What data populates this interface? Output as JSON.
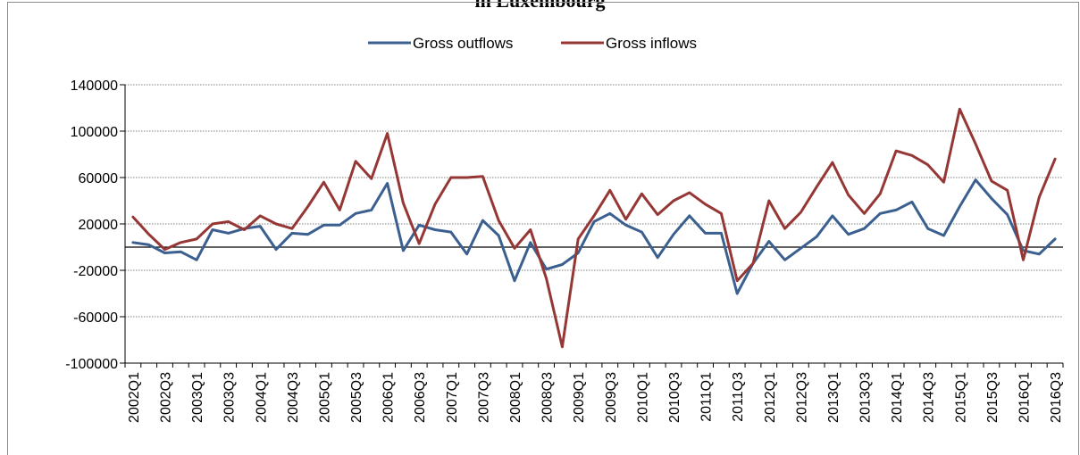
{
  "chart_data": {
    "type": "line",
    "title": "in Luxembourg",
    "xlabel": "",
    "ylabel": "",
    "ylim": [
      -100000,
      140000
    ],
    "yticks": [
      -100000,
      -60000,
      -20000,
      20000,
      60000,
      100000,
      140000
    ],
    "legend_position": "top-center",
    "grid": true,
    "x": [
      "2002Q1",
      "2002Q2",
      "2002Q3",
      "2002Q4",
      "2003Q1",
      "2003Q2",
      "2003Q3",
      "2003Q4",
      "2004Q1",
      "2004Q2",
      "2004Q3",
      "2004Q4",
      "2005Q1",
      "2005Q2",
      "2005Q3",
      "2005Q4",
      "2006Q1",
      "2006Q2",
      "2006Q3",
      "2006Q4",
      "2007Q1",
      "2007Q2",
      "2007Q3",
      "2007Q4",
      "2008Q1",
      "2008Q2",
      "2008Q3",
      "2008Q4",
      "2009Q1",
      "2009Q2",
      "2009Q3",
      "2009Q4",
      "2010Q1",
      "2010Q2",
      "2010Q3",
      "2010Q4",
      "2011Q1",
      "2011Q2",
      "2011Q3",
      "2011Q4",
      "2012Q1",
      "2012Q2",
      "2012Q3",
      "2012Q4",
      "2013Q1",
      "2013Q2",
      "2013Q3",
      "2013Q4",
      "2014Q1",
      "2014Q2",
      "2014Q3",
      "2014Q4",
      "2015Q1",
      "2015Q2",
      "2015Q3",
      "2015Q4",
      "2016Q1",
      "2016Q2",
      "2016Q3"
    ],
    "xtick_labels": [
      "2002Q1",
      "2002Q3",
      "2003Q1",
      "2003Q3",
      "2004Q1",
      "2004Q3",
      "2005Q1",
      "2005Q3",
      "2006Q1",
      "2006Q3",
      "2007Q1",
      "2007Q3",
      "2008Q1",
      "2008Q3",
      "2009Q1",
      "2009Q3",
      "2010Q1",
      "2010Q3",
      "2011Q1",
      "2011Q3",
      "2012Q1",
      "2012Q3",
      "2013Q1",
      "2013Q3",
      "2014Q1",
      "2014Q3",
      "2015Q1",
      "2015Q3",
      "2016Q1",
      "2016Q3"
    ],
    "series": [
      {
        "name": "Gross outflows",
        "color": "#3b608f",
        "values": [
          4000,
          2000,
          -5000,
          -4000,
          -11000,
          15000,
          12000,
          16000,
          18000,
          -2000,
          12000,
          11000,
          19000,
          19000,
          29000,
          32000,
          55000,
          -3000,
          19000,
          15000,
          13000,
          -6000,
          23000,
          10000,
          -29000,
          4000,
          -19000,
          -15000,
          -5000,
          22000,
          29000,
          19000,
          13000,
          -9000,
          11000,
          27000,
          12000,
          12000,
          -40000,
          -14000,
          5000,
          -11000,
          -1000,
          9000,
          27000,
          11000,
          16000,
          29000,
          32000,
          39000,
          16000,
          10000,
          35000,
          58000,
          42000,
          28000,
          -3000,
          -6000,
          7000
        ]
      },
      {
        "name": "Gross inflows",
        "color": "#953735",
        "values": [
          26000,
          11000,
          -2000,
          4000,
          7000,
          20000,
          22000,
          15000,
          27000,
          20000,
          16000,
          35000,
          56000,
          32000,
          74000,
          59000,
          98000,
          38000,
          3000,
          37000,
          60000,
          60000,
          61000,
          23000,
          -1000,
          15000,
          -27000,
          -86000,
          7000,
          27000,
          49000,
          24000,
          46000,
          28000,
          40000,
          47000,
          37000,
          29000,
          -29000,
          -14000,
          40000,
          16000,
          30000,
          52000,
          73000,
          45000,
          29000,
          46000,
          83000,
          79000,
          71000,
          56000,
          119000,
          89000,
          57000,
          49000,
          -11000,
          43000,
          76000
        ]
      }
    ]
  }
}
